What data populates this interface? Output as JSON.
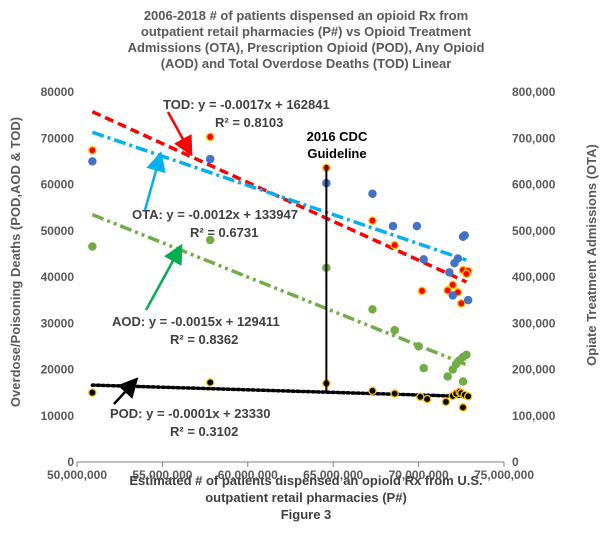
{
  "chart_data": {
    "type": "scatter",
    "title_lines": [
      "2006-2018 # of patients dispensed an opioid Rx from",
      "outpatient retail pharmacies (P#) vs Opioid Treatment",
      "Admissions (OTA), Prescription Opioid (POD), Any Opioid",
      "(AOD) and Total Overdose Deaths (TOD) Linear"
    ],
    "xlabel_lines": [
      "Estimated # of patients dispensed an opioid Rx from U.S.",
      "outpatient retail pharmacies (P#)",
      "Figure 3"
    ],
    "ylabel_left": "Overdose/Poisoning Deaths (POD,AOD & TOD)",
    "ylabel_right": "Opiate Treatment Admissions (OTA)",
    "xlim": [
      50000000,
      75000000
    ],
    "ylim_left": [
      0,
      80000
    ],
    "ylim_right": [
      0,
      800000
    ],
    "x_ticks": [
      "50,000,000",
      "55,000,000",
      "60,000,000",
      "65,000,000",
      "70,000,000",
      "75,000,000"
    ],
    "y_left_ticks": [
      "0",
      "10000",
      "20000",
      "30000",
      "40000",
      "50000",
      "60000",
      "70000",
      "80000"
    ],
    "y_right_ticks": [
      "0",
      "100,000",
      "200,000",
      "300,000",
      "400,000",
      "500,000",
      "600,000",
      "700,000",
      "800,000"
    ],
    "series": [
      {
        "name": "TOD",
        "axis": "left",
        "color": "#FF0000",
        "edge": "#FFC000",
        "points": [
          [
            50900000,
            67400
          ],
          [
            57800000,
            70300
          ],
          [
            64600000,
            63600
          ],
          [
            67300000,
            52200
          ],
          [
            68600000,
            46900
          ],
          [
            70200000,
            37000
          ],
          [
            71700000,
            37100
          ],
          [
            72000000,
            38300
          ],
          [
            72300000,
            36700
          ],
          [
            72500000,
            34300
          ],
          [
            72600000,
            41500
          ],
          [
            72900000,
            41300
          ],
          [
            72800000,
            40700
          ]
        ]
      },
      {
        "name": "OTA",
        "axis": "right",
        "color": "#4472C4",
        "edge": "#4472C4",
        "points": [
          [
            50900000,
            650000
          ],
          [
            57800000,
            655000
          ],
          [
            64600000,
            603000
          ],
          [
            67300000,
            580000
          ],
          [
            68500000,
            510000
          ],
          [
            69900000,
            510000
          ],
          [
            70300000,
            438000
          ],
          [
            71800000,
            410000
          ],
          [
            72000000,
            360000
          ],
          [
            72100000,
            430000
          ],
          [
            72300000,
            440000
          ],
          [
            72600000,
            487000
          ],
          [
            72700000,
            490000
          ],
          [
            72900000,
            350000
          ]
        ]
      },
      {
        "name": "AOD",
        "axis": "left",
        "color": "#70AD47",
        "edge": "#70AD47",
        "points": [
          [
            50900000,
            46600
          ],
          [
            57800000,
            48000
          ],
          [
            64600000,
            42000
          ],
          [
            67300000,
            33000
          ],
          [
            68600000,
            28500
          ],
          [
            70000000,
            25000
          ],
          [
            70300000,
            20300
          ],
          [
            71700000,
            18500
          ],
          [
            72000000,
            20000
          ],
          [
            72200000,
            21200
          ],
          [
            72400000,
            22000
          ],
          [
            72600000,
            22700
          ],
          [
            72800000,
            23200
          ],
          [
            72600000,
            17400
          ]
        ]
      },
      {
        "name": "POD",
        "axis": "left",
        "color": "#000000",
        "edge": "#FFC000",
        "points": [
          [
            50900000,
            15000
          ],
          [
            57800000,
            17200
          ],
          [
            64600000,
            17000
          ],
          [
            67300000,
            15400
          ],
          [
            68600000,
            14800
          ],
          [
            70100000,
            14100
          ],
          [
            70500000,
            13600
          ],
          [
            71600000,
            13000
          ],
          [
            72000000,
            14300
          ],
          [
            72200000,
            14800
          ],
          [
            72400000,
            15200
          ],
          [
            72500000,
            14900
          ],
          [
            72700000,
            14500
          ],
          [
            72900000,
            14200
          ],
          [
            72600000,
            11800
          ]
        ]
      }
    ],
    "trendlines": [
      {
        "name": "TOD",
        "axis": "left",
        "slope": -0.0017,
        "intercept": 162841,
        "color": "#FF0000",
        "dash": "9 5"
      },
      {
        "name": "OTA",
        "axis": "right",
        "slope": -0.0012,
        "intercept": 133947,
        "color": "#00B0F0",
        "dash": "12 4 3 4"
      },
      {
        "name": "AOD",
        "axis": "left",
        "slope": -0.0015,
        "intercept": 129411,
        "color": "#70AD47",
        "dash": "12 4 3 4 3 4"
      },
      {
        "name": "POD",
        "axis": "left",
        "slope": -0.0001,
        "intercept": 23330,
        "color": "#000000",
        "dash": "2 3"
      }
    ],
    "annotations": {
      "tod_eq": "TOD: y = -0.0017x + 162841",
      "tod_r2": "R² = 0.8103",
      "ota_eq": "OTA: y = -0.0012x + 133947",
      "ota_r2": "R² = 0.6731",
      "aod_eq": "AOD: y = -0.0015x + 129411",
      "aod_r2": "R² = 0.8362",
      "pod_eq": "POD: y = -0.0001x + 23330",
      "pod_r2": "R² = 0.3102",
      "cdc_line1": "2016 CDC",
      "cdc_line2": "Guideline"
    },
    "guideline_x": 64600000,
    "grid": false,
    "legend": "none"
  }
}
